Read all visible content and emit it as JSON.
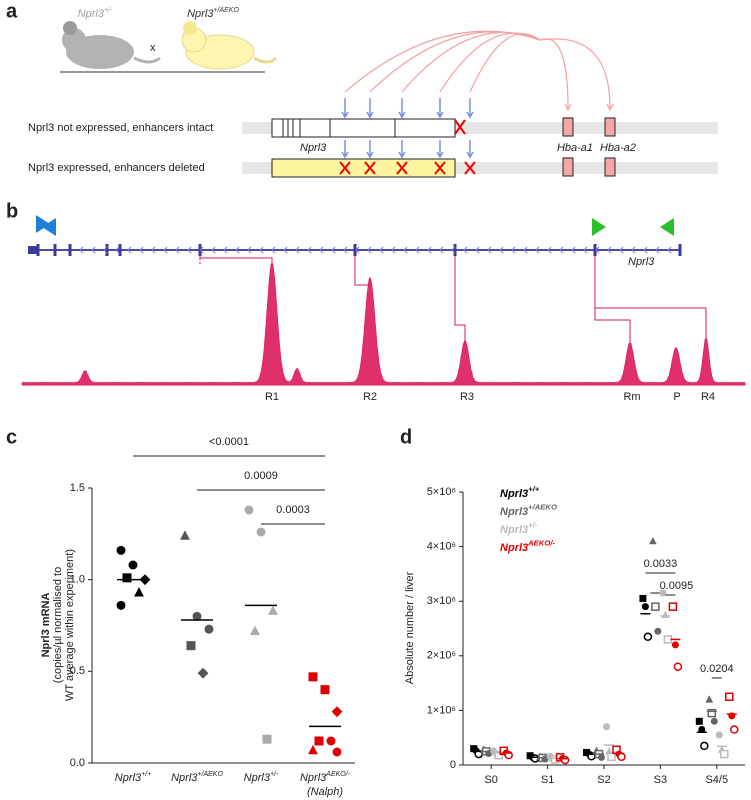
{
  "panel_a": {
    "label": "a",
    "parents": [
      {
        "text": "Nprl3",
        "sup": "+/-"
      },
      {
        "text": "Nprl3",
        "sup": "+/AEKO"
      }
    ],
    "cross": "x",
    "rows": [
      "Nprl3 not expressed, enhancers intact",
      "Nprl3 expressed, enhancers deleted"
    ],
    "genes": [
      "Nprl3",
      "Hba-a1",
      "Hba-a2"
    ]
  },
  "panel_b": {
    "label": "b",
    "gene": "Nprl3",
    "peaks": [
      "R1",
      "R2",
      "R3",
      "Rm",
      "P",
      "R4"
    ]
  },
  "panel_c": {
    "label": "c",
    "type": "dot",
    "ylabel": [
      "Nprl3 mRNA",
      "(copies/µl normalised to",
      "WT average within experiment)"
    ],
    "ylim": [
      0,
      1.5
    ],
    "yticks": [
      {
        "value": 0,
        "label": "0.0"
      },
      {
        "value": 0.5,
        "label": "0.5"
      },
      {
        "value": 1,
        "label": "1.0"
      },
      {
        "value": 1.5,
        "label": "1.5"
      }
    ],
    "groups": [
      {
        "name": {
          "text": "Nprl3",
          "sup": "+/+"
        },
        "color": "#000000",
        "markers": [
          "circle",
          "circle",
          "diamond",
          "square",
          "triangle",
          "circle"
        ],
        "values": [
          1.16,
          1.08,
          1.0,
          1.01,
          0.93,
          0.86
        ],
        "mean": 1.0
      },
      {
        "name": {
          "text": "Nprl3",
          "sup": "+/AEKO"
        },
        "color": "#555555",
        "markers": [
          "triangle",
          "circle",
          "circle",
          "square",
          "diamond"
        ],
        "values": [
          1.24,
          0.8,
          0.73,
          0.64,
          0.49
        ],
        "mean": 0.78
      },
      {
        "name": {
          "text": "Nprl3",
          "sup": "+/-"
        },
        "color": "#aaaaaa",
        "markers": [
          "circle",
          "circle",
          "triangle",
          "triangle",
          "square"
        ],
        "values": [
          1.38,
          1.26,
          0.83,
          0.72,
          0.13
        ],
        "mean": 0.86
      },
      {
        "name": {
          "text": "Nprl3",
          "sup": "AEKO/-",
          "sub": "(Nalph)"
        },
        "color": "#e00000",
        "markers": [
          "square",
          "square",
          "diamond",
          "square",
          "circle",
          "triangle",
          "circle"
        ],
        "values": [
          0.47,
          0.4,
          0.28,
          0.12,
          0.12,
          0.07,
          0.06
        ],
        "mean": 0.2
      }
    ],
    "pvalues": [
      {
        "text": "<0.0001",
        "from": 0,
        "to": 3
      },
      {
        "text": "0.0009",
        "from": 1,
        "to": 3
      },
      {
        "text": "0.0003",
        "from": 2,
        "to": 3
      }
    ]
  },
  "panel_d": {
    "label": "d",
    "type": "dot",
    "ylabel": "Absolute number / liver",
    "categories": [
      "S0",
      "S1",
      "S2",
      "S3",
      "S4/5"
    ],
    "ylim": [
      0,
      5000000
    ],
    "yticks": [
      0,
      {
        "value": 1000000,
        "label": "1×10⁶"
      },
      {
        "value": 2000000,
        "label": "2×10⁶"
      },
      {
        "value": 3000000,
        "label": "3×10⁶"
      },
      {
        "value": 4000000,
        "label": "4×10⁶"
      },
      {
        "value": 5000000,
        "label": "5×10⁶"
      }
    ],
    "series": [
      {
        "name": {
          "text": "Nprl3",
          "sup": "+/+"
        },
        "color": "#000000",
        "markers": [
          "square",
          "circle",
          "circle-open"
        ],
        "points": [
          [
            300000,
            260000,
            200000
          ],
          [
            170000,
            140000,
            120000
          ],
          [
            230000,
            200000,
            160000
          ],
          [
            3050000,
            2900000,
            2350000
          ],
          [
            800000,
            650000,
            350000
          ]
        ],
        "means": [
          250000,
          143000,
          197000,
          2770000,
          600000
        ]
      },
      {
        "name": {
          "text": "Nprl3",
          "sup": "+/AEKO"
        },
        "color": "#666666",
        "markers": [
          "triangle",
          "square-open",
          "circle"
        ],
        "points": [
          [
            280000,
            250000,
            210000
          ],
          [
            150000,
            130000,
            110000
          ],
          [
            260000,
            200000,
            140000
          ],
          [
            4100000,
            2900000,
            2450000
          ],
          [
            1200000,
            950000,
            800000
          ]
        ],
        "means": [
          247000,
          130000,
          200000,
          3150000,
          983000
        ]
      },
      {
        "name": {
          "text": "Nprl3",
          "sup": "+/-"
        },
        "color": "#bbbbbb",
        "markers": [
          "circle",
          "triangle",
          "square-open"
        ],
        "points": [
          [
            260000,
            220000,
            180000
          ],
          [
            160000,
            120000,
            100000
          ],
          [
            700000,
            250000,
            150000
          ],
          [
            3150000,
            2750000,
            2300000
          ],
          [
            550000,
            280000,
            200000
          ]
        ],
        "means": [
          220000,
          127000,
          367000,
          2730000,
          343000
        ]
      },
      {
        "name": {
          "text": "Nprl3",
          "sup": "AEKO/-"
        },
        "color": "#e00000",
        "markers": [
          "square-open",
          "circle",
          "circle-open"
        ],
        "points": [
          [
            260000,
            220000,
            180000
          ],
          [
            140000,
            120000,
            90000
          ],
          [
            280000,
            200000,
            150000
          ],
          [
            2900000,
            2200000,
            1800000
          ],
          [
            1250000,
            900000,
            650000
          ]
        ],
        "means": [
          220000,
          117000,
          210000,
          2300000,
          933000
        ]
      }
    ],
    "pvalues": [
      {
        "text": "0.0033",
        "category": 3,
        "from": 0,
        "to": 3
      },
      {
        "text": "0.0095",
        "category": 3,
        "from": 2,
        "to": 3
      },
      {
        "text": "0.0204",
        "category": 4,
        "from": 1,
        "to": 2
      }
    ]
  }
}
